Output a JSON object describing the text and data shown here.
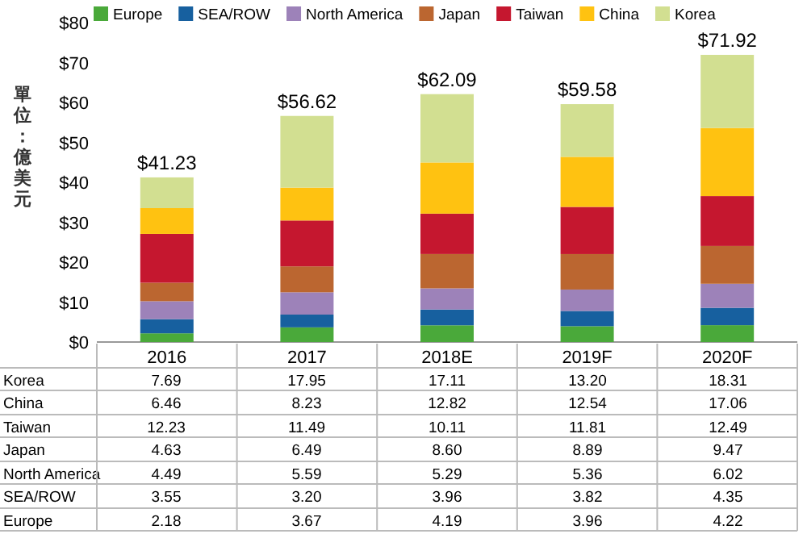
{
  "chart_data": {
    "type": "bar",
    "stacked": true,
    "ylabel": "單位：億美元",
    "categories": [
      "2016",
      "2017",
      "2018E",
      "2019F",
      "2020F"
    ],
    "series": [
      {
        "name": "Europe",
        "color": "#4aa93a",
        "values": [
          2.18,
          3.67,
          4.19,
          3.96,
          4.22
        ],
        "value_labels": [
          "2.18",
          "3.67",
          "4.19",
          "3.96",
          "4.22"
        ]
      },
      {
        "name": "SEA/ROW",
        "color": "#17609f",
        "values": [
          3.55,
          3.2,
          3.96,
          3.82,
          4.35
        ],
        "value_labels": [
          "3.55",
          "3.20",
          "3.96",
          "3.82",
          "4.35"
        ]
      },
      {
        "name": "North America",
        "color": "#9d82b9",
        "values": [
          4.49,
          5.59,
          5.29,
          5.36,
          6.02
        ],
        "value_labels": [
          "4.49",
          "5.59",
          "5.29",
          "5.36",
          "6.02"
        ]
      },
      {
        "name": "Japan",
        "color": "#bb6630",
        "values": [
          4.63,
          6.49,
          8.6,
          8.89,
          9.47
        ],
        "value_labels": [
          "4.63",
          "6.49",
          "8.60",
          "8.89",
          "9.47"
        ]
      },
      {
        "name": "Taiwan",
        "color": "#c5172f",
        "values": [
          12.23,
          11.49,
          10.11,
          11.81,
          12.49
        ],
        "value_labels": [
          "12.23",
          "11.49",
          "10.11",
          "11.81",
          "12.49"
        ]
      },
      {
        "name": "China",
        "color": "#ffc211",
        "values": [
          6.46,
          8.23,
          12.82,
          12.54,
          17.06
        ],
        "value_labels": [
          "6.46",
          "8.23",
          "12.82",
          "12.54",
          "17.06"
        ]
      },
      {
        "name": "Korea",
        "color": "#d2df91",
        "values": [
          7.69,
          17.95,
          17.11,
          13.2,
          18.31
        ],
        "value_labels": [
          "7.69",
          "17.95",
          "17.11",
          "13.20",
          "18.31"
        ]
      }
    ],
    "totals": [
      "$41.23",
      "$56.62",
      "$62.09",
      "$59.58",
      "$71.92"
    ],
    "ylim": [
      0,
      80
    ],
    "yticks": [
      {
        "value": 0,
        "label": "$0"
      },
      {
        "value": 10,
        "label": "$10"
      },
      {
        "value": 20,
        "label": "$20"
      },
      {
        "value": 30,
        "label": "$30"
      },
      {
        "value": 40,
        "label": "$40"
      },
      {
        "value": 50,
        "label": "$50"
      },
      {
        "value": 60,
        "label": "$60"
      },
      {
        "value": 70,
        "label": "$70"
      },
      {
        "value": 80,
        "label": "$80"
      }
    ],
    "legend": "top"
  }
}
